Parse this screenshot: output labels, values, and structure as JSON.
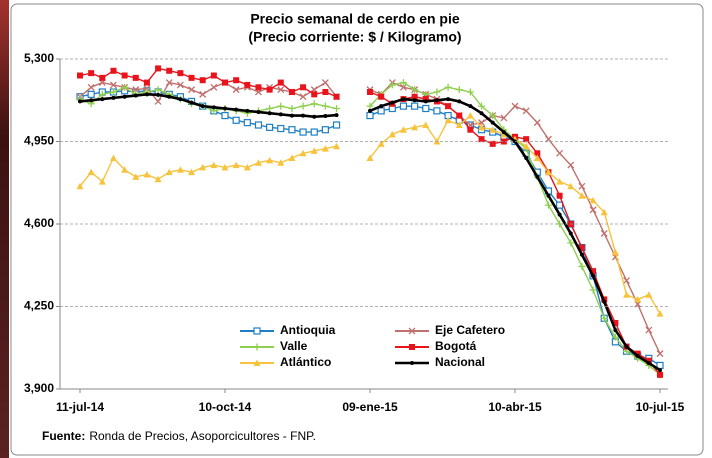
{
  "chart_data": {
    "type": "line",
    "title": "Precio semanal de cerdo en pie",
    "subtitle": "(Precio corriente: $ / Kilogramo)",
    "source": {
      "label": "Fuente:",
      "text": "Ronda de Precios, Asoporcicultores - FNP."
    },
    "categories": [
      "11-jul-14",
      null,
      null,
      null,
      null,
      null,
      null,
      null,
      null,
      null,
      null,
      null,
      null,
      "10-oct-14",
      null,
      null,
      null,
      null,
      null,
      null,
      null,
      null,
      null,
      null,
      null,
      null,
      "09-ene-15",
      null,
      null,
      null,
      null,
      null,
      null,
      null,
      null,
      null,
      null,
      null,
      null,
      "10-abr-15",
      null,
      null,
      null,
      null,
      null,
      null,
      null,
      null,
      null,
      null,
      null,
      null,
      "10-jul-15"
    ],
    "ylim": [
      3900,
      5300
    ],
    "yticks": [
      {
        "value": 3900,
        "label": "3,900"
      },
      {
        "value": 4250,
        "label": "4,250"
      },
      {
        "value": 4600,
        "label": "4,600"
      },
      {
        "value": 4950,
        "label": "4,950"
      },
      {
        "value": 5300,
        "label": "5,300"
      }
    ],
    "grid": true,
    "series": [
      {
        "name": "Antioquia",
        "color": "#1f7fc4",
        "marker": "square",
        "values": [
          5140,
          5150,
          5160,
          5160,
          5165,
          5160,
          5165,
          5160,
          5150,
          5140,
          5120,
          5100,
          5080,
          5060,
          5040,
          5030,
          5020,
          5010,
          5005,
          5000,
          4990,
          4990,
          5000,
          5020,
          null,
          null,
          5060,
          5080,
          5090,
          5100,
          5100,
          5090,
          5080,
          5060,
          5040,
          5020,
          5000,
          4990,
          4970,
          4950,
          4900,
          4820,
          4740,
          4680,
          4600,
          4500,
          4380,
          4200,
          4100,
          4060,
          4040,
          4030,
          4000
        ]
      },
      {
        "name": "Eje Cafetero",
        "color": "#c0706d",
        "marker": "x",
        "values": [
          5140,
          5180,
          5200,
          5190,
          5180,
          5170,
          5175,
          5120,
          5200,
          5190,
          5170,
          5150,
          5180,
          5200,
          5170,
          5180,
          5160,
          5180,
          5170,
          5160,
          5140,
          5170,
          5200,
          5140,
          null,
          null,
          5170,
          5150,
          5200,
          5180,
          5170,
          5150,
          5130,
          5100,
          5060,
          5020,
          5030,
          5060,
          5050,
          5100,
          5080,
          5030,
          4960,
          4900,
          4850,
          4760,
          4660,
          4560,
          4460,
          4360,
          4260,
          4150,
          4050
        ]
      },
      {
        "name": "Valle",
        "color": "#8fcf4f",
        "marker": "plus",
        "values": [
          5130,
          5110,
          5150,
          5160,
          5180,
          5150,
          5160,
          5170,
          5150,
          5130,
          5110,
          5100,
          5080,
          5090,
          5080,
          5070,
          5080,
          5090,
          5100,
          5090,
          5100,
          5110,
          5100,
          5090,
          null,
          null,
          5100,
          5150,
          5190,
          5200,
          5170,
          5150,
          5160,
          5180,
          5170,
          5160,
          5100,
          5060,
          5000,
          4960,
          4920,
          4800,
          4680,
          4600,
          4520,
          4420,
          4320,
          4200,
          4120,
          4060,
          4030,
          4000,
          3960
        ]
      },
      {
        "name": "Bogotá",
        "color": "#e8131b",
        "marker": "square-fill",
        "values": [
          5230,
          5240,
          5220,
          5250,
          5230,
          5220,
          5200,
          5260,
          5250,
          5240,
          5220,
          5210,
          5230,
          5200,
          5210,
          5190,
          5180,
          5170,
          5200,
          5160,
          5180,
          5150,
          5160,
          5140,
          null,
          null,
          5160,
          5140,
          5110,
          5130,
          5140,
          5130,
          5120,
          5100,
          5060,
          5000,
          4960,
          4940,
          4950,
          4970,
          4960,
          4900,
          4820,
          4720,
          4600,
          4500,
          4400,
          4280,
          4180,
          4080,
          4050,
          4020,
          3960
        ]
      },
      {
        "name": "Atlántico",
        "color": "#f7c33c",
        "marker": "triangle",
        "values": [
          4760,
          4820,
          4780,
          4880,
          4830,
          4800,
          4810,
          4790,
          4820,
          4830,
          4820,
          4840,
          4850,
          4840,
          4850,
          4840,
          4860,
          4870,
          4860,
          4880,
          4900,
          4910,
          4920,
          4930,
          null,
          null,
          4880,
          4940,
          4980,
          5000,
          5010,
          5020,
          4950,
          5040,
          5020,
          5060,
          5010,
          5000,
          4980,
          4960,
          4930,
          4880,
          4820,
          4780,
          4760,
          4720,
          4700,
          4650,
          4480,
          4300,
          4280,
          4300,
          4220
        ]
      },
      {
        "name": "Nacional",
        "color": "#000000",
        "marker": "dot",
        "values": [
          5120,
          5125,
          5130,
          5135,
          5140,
          5145,
          5150,
          5148,
          5140,
          5130,
          5115,
          5100,
          5095,
          5090,
          5085,
          5080,
          5075,
          5070,
          5065,
          5060,
          5060,
          5055,
          5058,
          5062,
          null,
          null,
          5080,
          5100,
          5115,
          5130,
          5125,
          5120,
          5125,
          5130,
          5120,
          5100,
          5070,
          5030,
          4990,
          4950,
          4880,
          4800,
          4720,
          4640,
          4560,
          4470,
          4380,
          4270,
          4150,
          4080,
          4040,
          4010,
          3980
        ]
      }
    ]
  }
}
